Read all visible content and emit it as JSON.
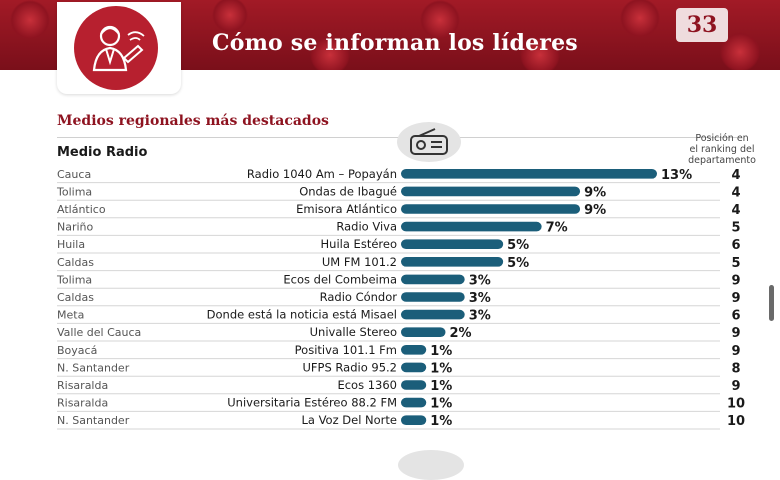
{
  "header": {
    "title": "Cómo se informan los líderes",
    "page_number": "33",
    "logo_icon": "leader-person-icon"
  },
  "section": {
    "subtitle": "Medios regionales más destacados",
    "medium": "Medio Radio",
    "medium_icon": "radio-icon",
    "rank_header": [
      "Posición en",
      "el ranking del",
      "departamento"
    ]
  },
  "colors": {
    "bar": "#1b5e7a",
    "accent": "#8e1320"
  },
  "chart_data": {
    "type": "bar",
    "orientation": "horizontal",
    "unit": "%",
    "rows": [
      {
        "department": "Cauca",
        "station": "Radio 1040 Am – Popayán",
        "value": 13,
        "label": "13%",
        "rank": "4"
      },
      {
        "department": "Tolima",
        "station": "Ondas de Ibagué",
        "value": 9,
        "label": "9%",
        "rank": "4"
      },
      {
        "department": "Atlántico",
        "station": "Emisora Atlántico",
        "value": 9,
        "label": "9%",
        "rank": "4"
      },
      {
        "department": "Nariño",
        "station": "Radio Viva",
        "value": 7,
        "label": "7%",
        "rank": "5"
      },
      {
        "department": "Huila",
        "station": "Huila Estéreo",
        "value": 5,
        "label": "5%",
        "rank": "6"
      },
      {
        "department": "Caldas",
        "station": "UM FM 101.2",
        "value": 5,
        "label": "5%",
        "rank": "5"
      },
      {
        "department": "Tolima",
        "station": "Ecos del Combeima",
        "value": 3,
        "label": "3%",
        "rank": "9"
      },
      {
        "department": "Caldas",
        "station": "Radio Cóndor",
        "value": 3,
        "label": "3%",
        "rank": "9"
      },
      {
        "department": "Meta",
        "station": "Donde está la noticia está Misael",
        "value": 3,
        "label": "3%",
        "rank": "6"
      },
      {
        "department": "Valle del Cauca",
        "station": "Univalle Stereo",
        "value": 2,
        "label": "2%",
        "rank": "9"
      },
      {
        "department": "Boyacá",
        "station": "Positiva 101.1 Fm",
        "value": 1,
        "label": "1%",
        "rank": "9"
      },
      {
        "department": "N. Santander",
        "station": "UFPS Radio 95.2",
        "value": 1,
        "label": "1%",
        "rank": "8"
      },
      {
        "department": "Risaralda",
        "station": "Ecos 1360",
        "value": 1,
        "label": "1%",
        "rank": "9"
      },
      {
        "department": "Risaralda",
        "station": "Universitaria Estéreo 88.2 FM",
        "value": 1,
        "label": "1%",
        "rank": "10"
      },
      {
        "department": "N. Santander",
        "station": "La Voz Del Norte",
        "value": 1,
        "label": "1%",
        "rank": "10"
      }
    ]
  }
}
